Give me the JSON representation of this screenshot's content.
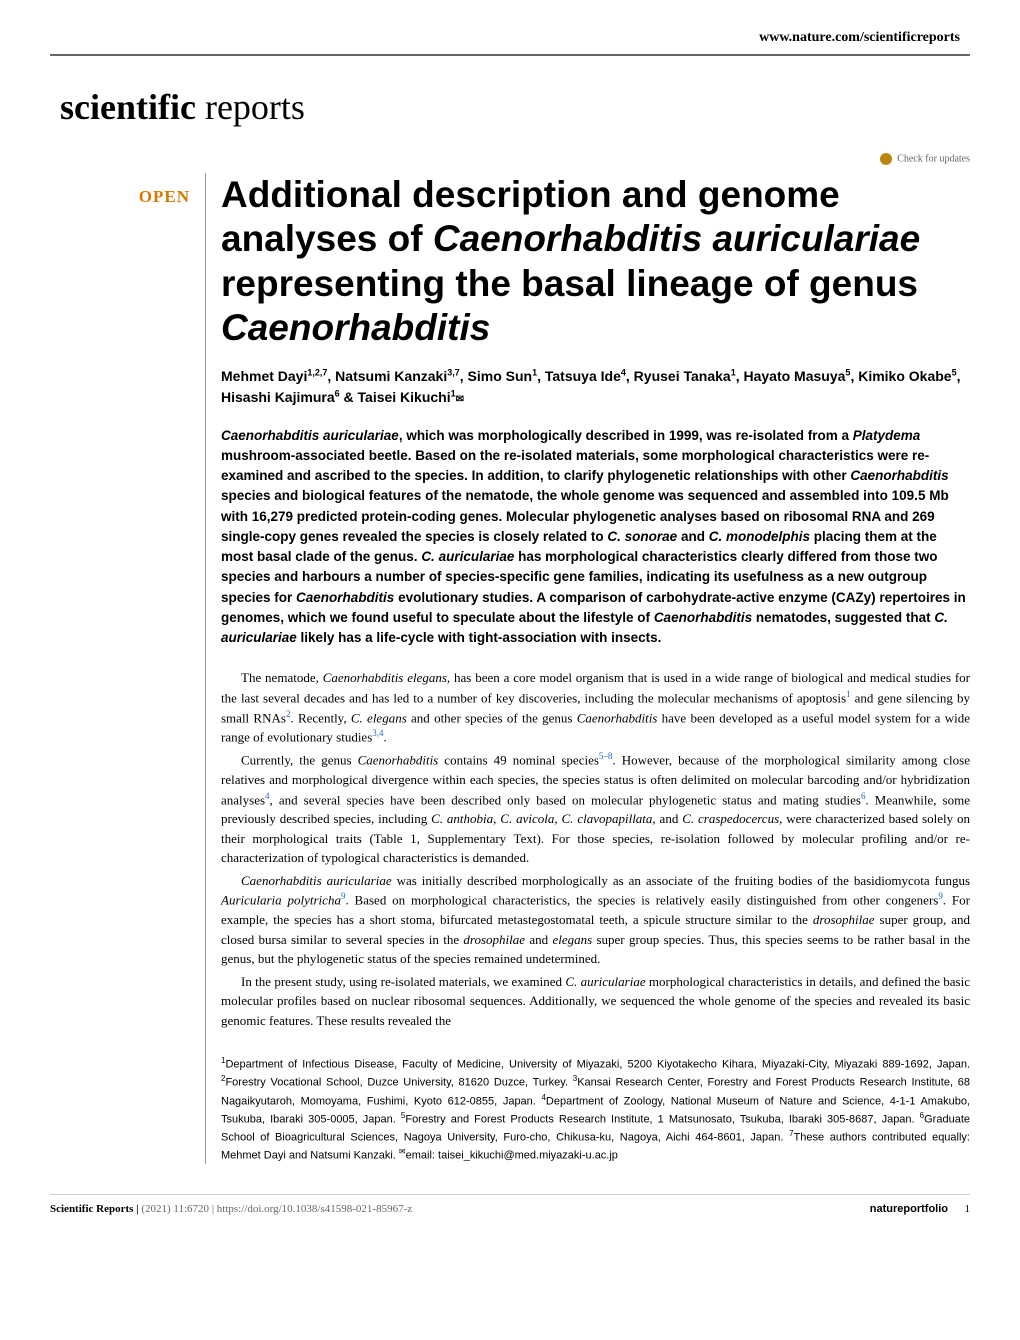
{
  "header": {
    "url": "www.nature.com/scientificreports",
    "journal_bold": "scientific",
    "journal_light": " reports",
    "check_updates": "Check for updates"
  },
  "badge": {
    "open": "OPEN"
  },
  "title": {
    "line1": "Additional description and genome analyses of ",
    "italic1": "Caenorhabditis auriculariae",
    "line2": " representing the basal lineage of genus ",
    "italic2": "Caenorhabditis"
  },
  "authors": "Mehmet Dayi1,2,7, Natsumi Kanzaki3,7, Simo Sun1, Tatsuya Ide4, Ryusei Tanaka1, Hayato Masuya5, Kimiko Okabe5, Hisashi Kajimura6 & Taisei Kikuchi1✉",
  "abstract": {
    "p1a": "Caenorhabditis auriculariae",
    "p1b": ", which was morphologically described in 1999, was re-isolated from a ",
    "p1c": "Platydema",
    "p1d": " mushroom-associated beetle. Based on the re-isolated materials, some morphological characteristics were re-examined and ascribed to the species. In addition, to clarify phylogenetic relationships with other ",
    "p1e": "Caenorhabditis",
    "p1f": " species and biological features of the nematode, the whole genome was sequenced and assembled into 109.5 Mb with 16,279 predicted protein-coding genes. Molecular phylogenetic analyses based on ribosomal RNA and 269 single-copy genes revealed the species is closely related to ",
    "p1g": "C. sonorae",
    "p1h": " and ",
    "p1i": "C. monodelphis",
    "p1j": " placing them at the most basal clade of the genus. ",
    "p1k": "C. auriculariae",
    "p1l": " has morphological characteristics clearly differed from those two species and harbours a number of species-specific gene families, indicating its usefulness as a new outgroup species for ",
    "p1m": "Caenorhabditis",
    "p1n": " evolutionary studies. A comparison of carbohydrate-active enzyme (CAZy) repertoires in genomes, which we found useful to speculate about the lifestyle of ",
    "p1o": "Caenorhabditis",
    "p1p": " nematodes, suggested that ",
    "p1q": "C. auriculariae",
    "p1r": " likely has a life-cycle with tight-association with insects."
  },
  "body": {
    "p1": "The nematode, Caenorhabditis elegans, has been a core model organism that is used in a wide range of biological and medical studies for the last several decades and has led to a number of key discoveries, including the molecular mechanisms of apoptosis1 and gene silencing by small RNAs2. Recently, C. elegans and other species of the genus Caenorhabditis have been developed as a useful model system for a wide range of evolutionary studies3,4.",
    "p2": "Currently, the genus Caenorhabditis contains 49 nominal species5–8. However, because of the morphological similarity among close relatives and morphological divergence within each species, the species status is often delimited on molecular barcoding and/or hybridization analyses4, and several species have been described only based on molecular phylogenetic status and mating studies6. Meanwhile, some previously described species, including C. anthobia, C. avicola, C. clavopapillata, and C. craspedocercus, were characterized based solely on their morphological traits (Table 1, Supplementary Text). For those species, re-isolation followed by molecular profiling and/or re-characterization of typological characteristics is demanded.",
    "p3": "Caenorhabditis auriculariae was initially described morphologically as an associate of the fruiting bodies of the basidiomycota fungus Auricularia polytricha9. Based on morphological characteristics, the species is relatively easily distinguished from other congeners9. For example, the species has a short stoma, bifurcated metastegostomatal teeth, a spicule structure similar to the drosophilae super group, and closed bursa similar to several species in the drosophilae and elegans super group species. Thus, this species seems to be rather basal in the genus, but the phylogenetic status of the species remained undetermined.",
    "p4": "In the present study, using re-isolated materials, we examined C. auriculariae morphological characteristics in details, and defined the basic molecular profiles based on nuclear ribosomal sequences. Additionally, we sequenced the whole genome of the species and revealed its basic genomic features. These results revealed the"
  },
  "affiliations": "1Department of Infectious Disease, Faculty of Medicine, University of Miyazaki, 5200 Kiyotakecho Kihara, Miyazaki-City, Miyazaki 889-1692, Japan. 2Forestry Vocational School, Duzce University, 81620 Duzce, Turkey. 3Kansai Research Center, Forestry and Forest Products Research Institute, 68 Nagaikyutaroh, Momoyama, Fushimi, Kyoto 612-0855, Japan. 4Department of Zoology, National Museum of Nature and Science, 4-1-1 Amakubo, Tsukuba, Ibaraki 305-0005, Japan. 5Forestry and Forest Products Research Institute, 1 Matsunosato, Tsukuba, Ibaraki 305-8687, Japan. 6Graduate School of Bioagricultural Sciences, Nagoya University, Furo-cho, Chikusa-ku, Nagoya, Aichi 464-8601, Japan. 7These authors contributed equally: Mehmet Dayi and Natsumi Kanzaki. ✉email: taisei_kikuchi@med.miyazaki-u.ac.jp",
  "footer": {
    "journal": "Scientific Reports |",
    "citation": "(2021) 11:6720",
    "doi": "| https://doi.org/10.1038/s41598-021-85967-z",
    "publisher": "natureportfolio",
    "page": "1"
  }
}
